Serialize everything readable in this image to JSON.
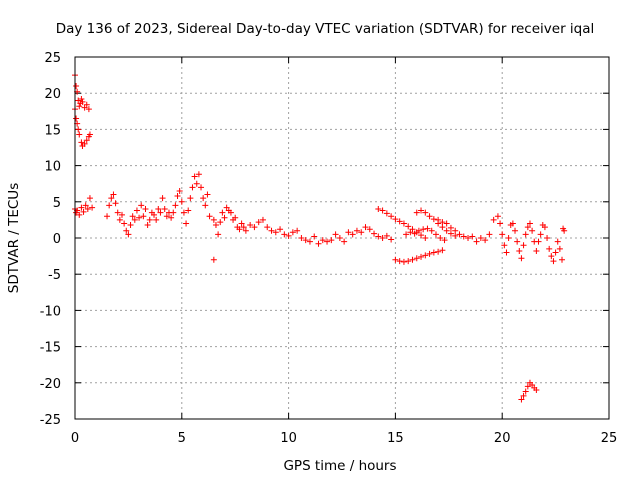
{
  "chart_data": {
    "type": "scatter",
    "title": "Day 136 of 2023, Sidereal Day-to-day VTEC variation (SDTVAR) for receiver iqal",
    "xlabel": "GPS time / hours",
    "ylabel": "SDTVAR / TECUs",
    "xlim": [
      0,
      25
    ],
    "ylim": [
      -25,
      25
    ],
    "xticks": [
      0,
      5,
      10,
      15,
      20,
      25
    ],
    "yticks": [
      -25,
      -20,
      -15,
      -10,
      -5,
      0,
      5,
      10,
      15,
      20,
      25
    ],
    "grid": true,
    "marker": "plus",
    "marker_color": "#ff0000",
    "series": [
      {
        "name": "iqal",
        "points": [
          [
            0.0,
            22.5
          ],
          [
            0.05,
            21.0
          ],
          [
            0.1,
            20.2
          ],
          [
            0.15,
            19.0
          ],
          [
            0.2,
            18.2
          ],
          [
            0.25,
            18.6
          ],
          [
            0.3,
            19.2
          ],
          [
            0.35,
            18.8
          ],
          [
            0.45,
            18.0
          ],
          [
            0.55,
            18.4
          ],
          [
            0.65,
            17.8
          ],
          [
            0.0,
            17.8
          ],
          [
            0.05,
            16.5
          ],
          [
            0.1,
            15.8
          ],
          [
            0.15,
            15.0
          ],
          [
            0.2,
            14.3
          ],
          [
            0.3,
            13.2
          ],
          [
            0.35,
            12.7
          ],
          [
            0.45,
            13.0
          ],
          [
            0.55,
            13.5
          ],
          [
            0.65,
            14.0
          ],
          [
            0.7,
            14.3
          ],
          [
            0.0,
            4.0
          ],
          [
            0.05,
            3.5
          ],
          [
            0.1,
            3.8
          ],
          [
            0.2,
            3.2
          ],
          [
            0.3,
            4.2
          ],
          [
            0.4,
            3.6
          ],
          [
            0.5,
            4.5
          ],
          [
            0.6,
            4.0
          ],
          [
            0.7,
            5.5
          ],
          [
            0.8,
            4.2
          ],
          [
            1.5,
            3.0
          ],
          [
            1.6,
            4.5
          ],
          [
            1.7,
            5.5
          ],
          [
            1.8,
            6.0
          ],
          [
            1.9,
            4.8
          ],
          [
            2.0,
            3.5
          ],
          [
            2.1,
            2.5
          ],
          [
            2.2,
            3.2
          ],
          [
            2.3,
            2.0
          ],
          [
            2.4,
            1.0
          ],
          [
            2.5,
            0.5
          ],
          [
            2.6,
            1.8
          ],
          [
            2.7,
            3.0
          ],
          [
            2.8,
            2.5
          ],
          [
            2.9,
            3.8
          ],
          [
            3.0,
            2.8
          ],
          [
            3.1,
            4.5
          ],
          [
            3.2,
            3.0
          ],
          [
            3.3,
            4.0
          ],
          [
            3.4,
            1.8
          ],
          [
            3.5,
            2.5
          ],
          [
            3.6,
            3.5
          ],
          [
            3.7,
            3.2
          ],
          [
            3.8,
            2.5
          ],
          [
            3.9,
            4.0
          ],
          [
            4.0,
            3.5
          ],
          [
            4.1,
            5.5
          ],
          [
            4.2,
            4.0
          ],
          [
            4.3,
            3.0
          ],
          [
            4.4,
            3.5
          ],
          [
            4.5,
            2.8
          ],
          [
            4.6,
            3.5
          ],
          [
            4.7,
            4.5
          ],
          [
            4.8,
            5.8
          ],
          [
            4.9,
            6.5
          ],
          [
            5.0,
            5.0
          ],
          [
            5.1,
            3.5
          ],
          [
            5.2,
            2.0
          ],
          [
            5.3,
            3.8
          ],
          [
            5.4,
            5.5
          ],
          [
            5.5,
            7.0
          ],
          [
            5.6,
            8.5
          ],
          [
            5.7,
            7.5
          ],
          [
            5.8,
            8.8
          ],
          [
            5.9,
            7.0
          ],
          [
            6.0,
            5.5
          ],
          [
            6.1,
            4.5
          ],
          [
            6.2,
            6.0
          ],
          [
            6.3,
            3.0
          ],
          [
            6.5,
            2.5
          ],
          [
            6.6,
            1.8
          ],
          [
            6.7,
            0.5
          ],
          [
            6.8,
            2.2
          ],
          [
            6.9,
            3.5
          ],
          [
            7.0,
            2.8
          ],
          [
            7.1,
            4.2
          ],
          [
            7.2,
            3.8
          ],
          [
            7.3,
            3.5
          ],
          [
            7.4,
            2.5
          ],
          [
            7.5,
            2.8
          ],
          [
            7.6,
            1.5
          ],
          [
            7.7,
            1.2
          ],
          [
            7.8,
            2.0
          ],
          [
            7.9,
            1.5
          ],
          [
            8.0,
            1.0
          ],
          [
            8.2,
            1.8
          ],
          [
            8.4,
            1.5
          ],
          [
            8.6,
            2.2
          ],
          [
            8.8,
            2.5
          ],
          [
            6.5,
            -3.0
          ],
          [
            9.0,
            1.5
          ],
          [
            9.2,
            1.0
          ],
          [
            9.4,
            0.8
          ],
          [
            9.6,
            1.2
          ],
          [
            9.8,
            0.5
          ],
          [
            10.0,
            0.3
          ],
          [
            10.2,
            0.8
          ],
          [
            10.4,
            1.0
          ],
          [
            10.6,
            0.0
          ],
          [
            10.8,
            -0.3
          ],
          [
            11.0,
            -0.5
          ],
          [
            11.2,
            0.2
          ],
          [
            11.4,
            -0.8
          ],
          [
            11.6,
            -0.3
          ],
          [
            11.8,
            -0.5
          ],
          [
            12.0,
            -0.3
          ],
          [
            12.2,
            0.5
          ],
          [
            12.4,
            0.0
          ],
          [
            12.6,
            -0.5
          ],
          [
            12.8,
            0.8
          ],
          [
            13.0,
            0.5
          ],
          [
            13.2,
            1.0
          ],
          [
            13.4,
            0.8
          ],
          [
            13.6,
            1.5
          ],
          [
            13.8,
            1.2
          ],
          [
            14.0,
            0.6
          ],
          [
            14.2,
            0.2
          ],
          [
            14.4,
            0.0
          ],
          [
            14.6,
            0.3
          ],
          [
            14.8,
            -0.2
          ],
          [
            14.2,
            4.0
          ],
          [
            14.4,
            3.8
          ],
          [
            14.6,
            3.4
          ],
          [
            14.8,
            3.0
          ],
          [
            15.0,
            2.6
          ],
          [
            15.2,
            2.3
          ],
          [
            15.4,
            2.0
          ],
          [
            15.6,
            1.6
          ],
          [
            15.8,
            1.2
          ],
          [
            16.0,
            0.8
          ],
          [
            16.2,
            0.4
          ],
          [
            16.4,
            0.0
          ],
          [
            15.0,
            -3.0
          ],
          [
            15.2,
            -3.2
          ],
          [
            15.4,
            -3.3
          ],
          [
            15.6,
            -3.2
          ],
          [
            15.8,
            -3.0
          ],
          [
            16.0,
            -2.8
          ],
          [
            16.2,
            -2.6
          ],
          [
            16.4,
            -2.4
          ],
          [
            16.6,
            -2.2
          ],
          [
            16.8,
            -2.0
          ],
          [
            17.0,
            -1.9
          ],
          [
            17.2,
            -1.7
          ],
          [
            15.5,
            0.5
          ],
          [
            15.7,
            0.8
          ],
          [
            15.9,
            0.6
          ],
          [
            16.1,
            1.0
          ],
          [
            16.3,
            1.2
          ],
          [
            16.5,
            1.3
          ],
          [
            16.7,
            1.0
          ],
          [
            16.9,
            0.5
          ],
          [
            17.1,
            0.0
          ],
          [
            17.3,
            -0.3
          ],
          [
            16.0,
            3.5
          ],
          [
            16.2,
            3.8
          ],
          [
            16.4,
            3.5
          ],
          [
            16.6,
            3.0
          ],
          [
            16.8,
            2.6
          ],
          [
            17.0,
            2.0
          ],
          [
            17.2,
            1.5
          ],
          [
            17.4,
            1.0
          ],
          [
            17.6,
            0.6
          ],
          [
            17.8,
            0.3
          ],
          [
            17.0,
            2.5
          ],
          [
            17.2,
            2.2
          ],
          [
            17.4,
            2.0
          ],
          [
            17.6,
            1.4
          ],
          [
            17.8,
            1.0
          ],
          [
            18.0,
            0.5
          ],
          [
            18.2,
            0.2
          ],
          [
            18.4,
            0.0
          ],
          [
            18.6,
            0.2
          ],
          [
            18.8,
            -0.5
          ],
          [
            19.0,
            0.0
          ],
          [
            19.2,
            -0.3
          ],
          [
            19.4,
            0.5
          ],
          [
            19.6,
            2.5
          ],
          [
            19.8,
            3.0
          ],
          [
            19.9,
            2.0
          ],
          [
            20.0,
            0.5
          ],
          [
            20.1,
            -1.0
          ],
          [
            20.2,
            -2.0
          ],
          [
            20.3,
            0.0
          ],
          [
            20.4,
            1.8
          ],
          [
            20.5,
            2.0
          ],
          [
            20.6,
            1.0
          ],
          [
            20.7,
            -0.5
          ],
          [
            20.8,
            -1.8
          ],
          [
            20.9,
            -2.8
          ],
          [
            21.0,
            -1.0
          ],
          [
            21.1,
            0.5
          ],
          [
            21.2,
            1.5
          ],
          [
            21.3,
            2.0
          ],
          [
            21.4,
            1.0
          ],
          [
            21.5,
            -0.5
          ],
          [
            21.6,
            -1.8
          ],
          [
            21.7,
            -0.5
          ],
          [
            21.8,
            0.5
          ],
          [
            21.9,
            1.8
          ],
          [
            22.0,
            1.5
          ],
          [
            22.1,
            0.0
          ],
          [
            22.2,
            -1.5
          ],
          [
            22.3,
            -2.5
          ],
          [
            22.4,
            -3.2
          ],
          [
            22.5,
            -2.0
          ],
          [
            22.6,
            -0.5
          ],
          [
            22.7,
            -1.5
          ],
          [
            22.8,
            -3.0
          ],
          [
            22.9,
            1.0
          ],
          [
            22.85,
            1.3
          ],
          [
            20.9,
            -22.3
          ],
          [
            21.0,
            -21.8
          ],
          [
            21.1,
            -21.2
          ],
          [
            21.2,
            -20.5
          ],
          [
            21.3,
            -20.0
          ],
          [
            21.4,
            -20.3
          ],
          [
            21.5,
            -20.7
          ],
          [
            21.6,
            -21.0
          ]
        ]
      }
    ]
  }
}
